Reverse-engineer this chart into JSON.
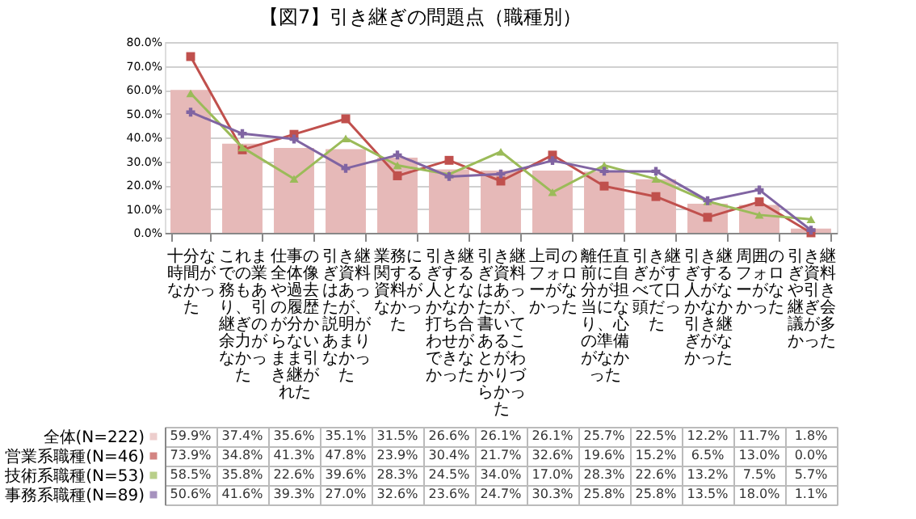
{
  "chart_data": {
    "type": "bar",
    "title": "【図7】引き継ぎの問題点（職種別）",
    "categories": [
      "十分な時間がなかった",
      "これまでの業務もあり、引継ぎの余力がなかった",
      "仕事の全体像や過去の履歴が分からないまま引き継がれた",
      "引き継ぎ資料はあったが、説明があまりなかった",
      "業務に関する資料がなかった",
      "引き継ぎする人となかなか打ち合わせができなかった",
      "引き継ぎ資料はあったが、書いてあることがわかりづらかった",
      "上司のフォローがなかった",
      "離任直前に自分が担当になり、心の準備がなかった",
      "引き継ぎがすべて口頭だった",
      "引き継ぎする人がなかなか引き継ぎがなかった",
      "周囲のフォローがなかった",
      "引き継ぎ資料や引き継ぎ会議が多かった"
    ],
    "series": [
      {
        "name": "全体(N=222)",
        "color": "#e6b9b8",
        "values": [
          59.9,
          37.4,
          35.6,
          35.1,
          31.5,
          26.6,
          26.1,
          26.1,
          25.7,
          22.5,
          12.2,
          11.7,
          1.8
        ],
        "value_labels": [
          "59.9%",
          "37.4%",
          "35.6%",
          "35.1%",
          "31.5%",
          "26.6%",
          "26.1%",
          "26.1%",
          "25.7%",
          "22.5%",
          "12.2%",
          "11.7%",
          "1.8%"
        ]
      },
      {
        "name": "営業系職種(N=46)",
        "type": "line",
        "marker": "square",
        "color": "#c0504d",
        "values": [
          73.9,
          34.8,
          41.3,
          47.8,
          23.9,
          30.4,
          21.7,
          32.6,
          19.6,
          15.2,
          6.5,
          13.0,
          0.0
        ],
        "value_labels": [
          "73.9%",
          "34.8%",
          "41.3%",
          "47.8%",
          "23.9%",
          "30.4%",
          "21.7%",
          "32.6%",
          "19.6%",
          "15.2%",
          "6.5%",
          "13.0%",
          "0.0%"
        ]
      },
      {
        "name": "技術系職種(N=53)",
        "type": "line",
        "marker": "triangle",
        "color": "#9bbb59",
        "values": [
          58.5,
          35.8,
          22.6,
          39.6,
          28.3,
          24.5,
          34.0,
          17.0,
          28.3,
          22.6,
          13.2,
          7.5,
          5.7
        ],
        "value_labels": [
          "58.5%",
          "35.8%",
          "22.6%",
          "39.6%",
          "28.3%",
          "24.5%",
          "34.0%",
          "17.0%",
          "28.3%",
          "22.6%",
          "13.2%",
          "7.5%",
          "5.7%"
        ]
      },
      {
        "name": "事務系職種(N=89)",
        "type": "line",
        "marker": "cross",
        "color": "#8064a2",
        "values": [
          50.6,
          41.6,
          39.3,
          27.0,
          32.6,
          23.6,
          24.7,
          30.3,
          25.8,
          25.8,
          13.5,
          18.0,
          1.1
        ],
        "value_labels": [
          "50.6%",
          "41.6%",
          "39.3%",
          "27.0%",
          "32.6%",
          "23.6%",
          "24.7%",
          "30.3%",
          "25.8%",
          "25.8%",
          "13.5%",
          "18.0%",
          "1.1%"
        ]
      }
    ],
    "ylim": [
      0,
      80
    ],
    "yticks": [
      {
        "value": 0,
        "label": "0.0%"
      },
      {
        "value": 10,
        "label": "10.0%"
      },
      {
        "value": 20,
        "label": "20.0%"
      },
      {
        "value": 30,
        "label": "30.0%"
      },
      {
        "value": 40,
        "label": "40.0%"
      },
      {
        "value": 50,
        "label": "50.0%"
      },
      {
        "value": 60,
        "label": "60.0%"
      },
      {
        "value": 70,
        "label": "70.0%"
      },
      {
        "value": 80,
        "label": "80.0%"
      }
    ],
    "grid": "y",
    "legend": "bottom left",
    "data_labels": true
  }
}
